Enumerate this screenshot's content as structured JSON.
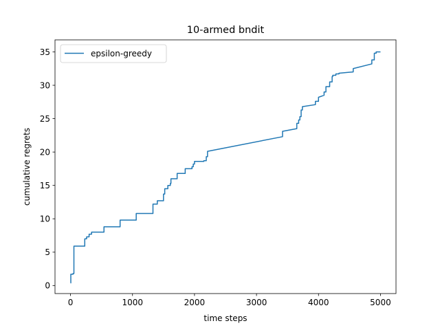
{
  "chart_data": {
    "type": "line",
    "title": "10-armed bndit",
    "xlabel": "time steps",
    "ylabel": "cumulative regrets",
    "xlim": [
      -250,
      5250
    ],
    "ylim": [
      -1.2,
      36.8
    ],
    "xticks": [
      0,
      1000,
      2000,
      3000,
      4000,
      5000
    ],
    "yticks": [
      0,
      5,
      10,
      15,
      20,
      25,
      30,
      35
    ],
    "grid": false,
    "legend": {
      "position": "top-left"
    },
    "colors": {
      "series": "#1f77b4",
      "axes": "#000000",
      "background": "#ffffff"
    },
    "series": [
      {
        "name": "epsilon-greedy",
        "x": [
          0,
          5,
          5,
          40,
          40,
          55,
          55,
          230,
          230,
          260,
          260,
          300,
          300,
          340,
          340,
          540,
          540,
          800,
          800,
          1060,
          1060,
          1330,
          1330,
          1400,
          1400,
          1500,
          1500,
          1520,
          1520,
          1570,
          1570,
          1610,
          1610,
          1620,
          1620,
          1720,
          1720,
          1850,
          1850,
          1960,
          1960,
          1980,
          1980,
          2000,
          2000,
          2150,
          2150,
          2190,
          2190,
          2210,
          2210,
          3420,
          3420,
          3650,
          3650,
          3680,
          3680,
          3700,
          3700,
          3720,
          3720,
          3740,
          3740,
          3950,
          3950,
          4000,
          4000,
          4090,
          4090,
          4120,
          4120,
          4180,
          4180,
          4220,
          4220,
          4230,
          4230,
          4280,
          4280,
          4330,
          4330,
          4560,
          4560,
          4860,
          4860,
          4900,
          4900,
          4930,
          4930,
          5000
        ],
        "y": [
          0.4,
          0.4,
          1.7,
          1.7,
          1.8,
          1.8,
          5.9,
          5.9,
          7.0,
          7.0,
          7.3,
          7.3,
          7.7,
          7.7,
          8.0,
          8.0,
          8.8,
          8.8,
          9.8,
          9.8,
          10.8,
          10.8,
          12.2,
          12.2,
          12.7,
          12.7,
          13.7,
          13.7,
          14.5,
          14.5,
          15.0,
          15.0,
          15.3,
          15.3,
          16.0,
          16.0,
          16.8,
          16.8,
          17.5,
          17.5,
          17.8,
          17.8,
          18.2,
          18.2,
          18.6,
          18.6,
          18.7,
          18.7,
          19.3,
          19.3,
          20.1,
          22.3,
          23.1,
          23.5,
          24.3,
          24.3,
          24.8,
          24.8,
          25.3,
          25.3,
          26.3,
          26.3,
          26.8,
          27.1,
          27.6,
          27.6,
          28.2,
          28.5,
          29.0,
          29.0,
          29.8,
          29.8,
          30.5,
          30.5,
          31.3,
          31.3,
          31.5,
          31.5,
          31.7,
          31.7,
          31.8,
          32.0,
          32.5,
          33.2,
          33.8,
          33.8,
          34.8,
          34.8,
          35.0,
          35.0
        ]
      }
    ]
  }
}
